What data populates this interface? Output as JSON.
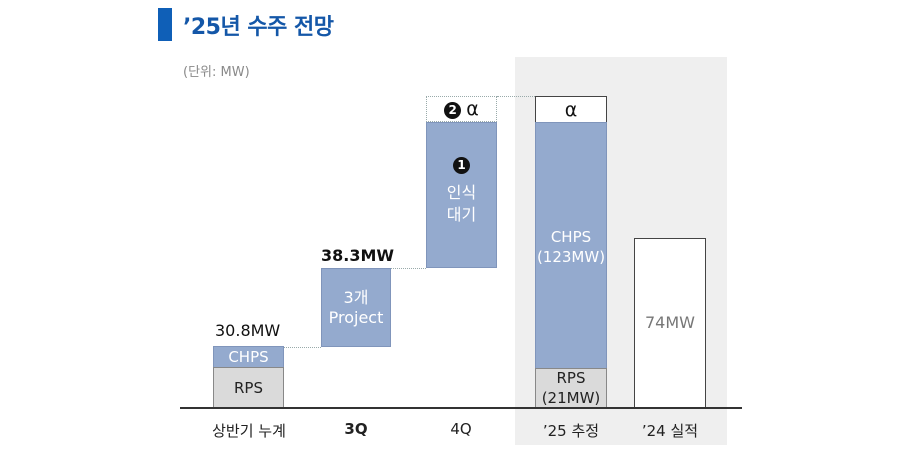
{
  "title": "’25년 수주 전망",
  "unit": "(단위: MW)",
  "colors": {
    "title": "#1457a8",
    "increment": "#94aace",
    "rps": "#dadada",
    "highlight_panel": "#efefef"
  },
  "chart_data": {
    "type": "bar",
    "subtype": "waterfall",
    "title": "’25년 수주 전망",
    "unit": "(단위: MW)",
    "categories": [
      "상반기 누계",
      "3Q",
      "4Q",
      "’25 추정",
      "’24 실적"
    ],
    "bars": [
      {
        "category": "상반기 누계",
        "total_label": "30.8MW",
        "segments": [
          {
            "label": "RPS"
          },
          {
            "label": "CHPS"
          }
        ]
      },
      {
        "category": "3Q",
        "total_label": "38.3MW",
        "segments": [
          {
            "label": "3개 Project"
          }
        ]
      },
      {
        "category": "4Q",
        "segments": [
          {
            "marker": "1",
            "label": "인식 대기"
          },
          {
            "marker": "2",
            "label": "α"
          }
        ]
      },
      {
        "category": "’25 추정",
        "segments": [
          {
            "label": "RPS (21MW)",
            "value": 21
          },
          {
            "label": "CHPS (123MW)",
            "value": 123
          },
          {
            "label": "α"
          }
        ]
      },
      {
        "category": "’24 실적",
        "segments": [
          {
            "label": "74MW",
            "value": 74
          }
        ]
      }
    ],
    "highlighted_category": "’25 추정"
  },
  "labels": {
    "b1_total": "30.8MW",
    "b1_rps": "RPS",
    "b1_chps": "CHPS",
    "b2_total": "38.3MW",
    "b2_l1": "3개",
    "b2_l2": "Project",
    "b3_marker1": "1",
    "b3_l1": "인식",
    "b3_l2": "대기",
    "b3_marker2": "2",
    "alpha": "α",
    "b4_chps1": "CHPS",
    "b4_chps2": "(123MW)",
    "b4_rps1": "RPS",
    "b4_rps2": "(21MW)",
    "b5": "74MW",
    "x0": "상반기 누계",
    "x1": "3Q",
    "x2": "4Q",
    "x3": "’25 추정",
    "x4": "’24 실적"
  }
}
